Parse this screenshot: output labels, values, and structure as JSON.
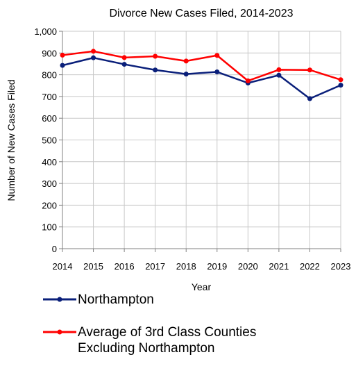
{
  "chart_data": {
    "type": "line",
    "title": "Divorce New Cases Filed, 2014-2023",
    "xlabel": "Year",
    "ylabel": "Number of New Cases Filed",
    "categories": [
      "2014",
      "2015",
      "2016",
      "2017",
      "2018",
      "2019",
      "2020",
      "2021",
      "2022",
      "2023"
    ],
    "ylim": [
      0,
      1000
    ],
    "yticks": [
      "0",
      "100",
      "200",
      "300",
      "400",
      "500",
      "600",
      "700",
      "800",
      "900",
      "1,000"
    ],
    "grid": true,
    "legend_position": "bottom",
    "series": [
      {
        "name": "Northampton",
        "color": "#0a1f7a",
        "values": [
          843,
          878,
          848,
          822,
          803,
          813,
          762,
          798,
          690,
          752
        ]
      },
      {
        "name": "Average of 3rd Class Counties Excluding Northampton",
        "color": "#ff0000",
        "values": [
          890,
          908,
          879,
          885,
          863,
          889,
          772,
          823,
          822,
          777
        ]
      }
    ]
  }
}
